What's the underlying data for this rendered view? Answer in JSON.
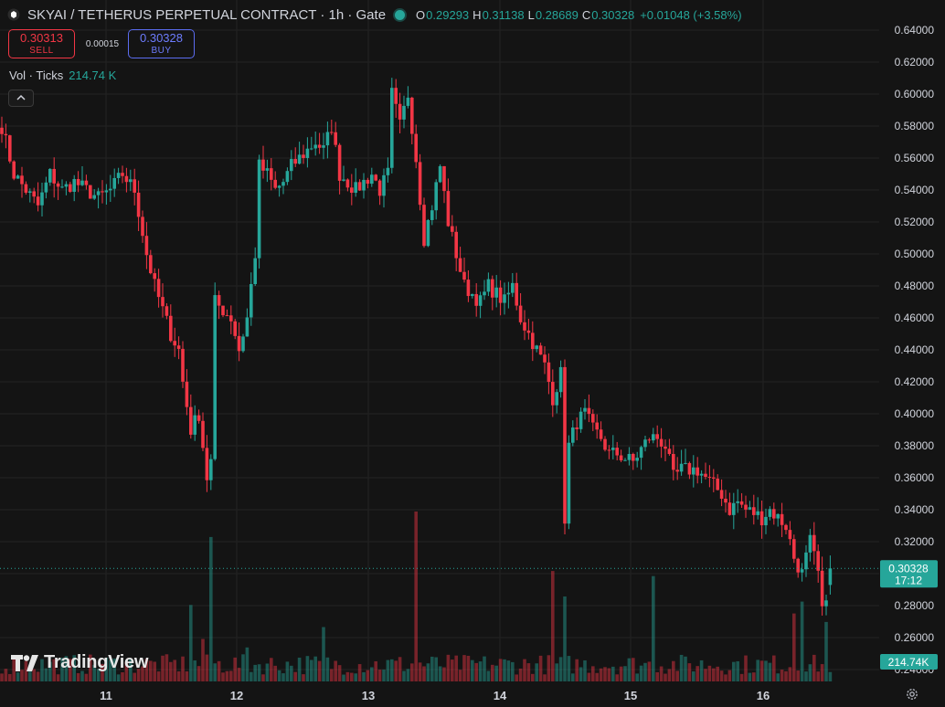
{
  "header": {
    "title": "SKYAI / TETHERUS PERPETUAL CONTRACT · 1h · Gate",
    "o_key": "O",
    "o_val": "0.29293",
    "h_key": "H",
    "h_val": "0.31138",
    "l_key": "L",
    "l_val": "0.28689",
    "c_key": "C",
    "c_val": "0.30328",
    "change": "+0.01048 (+3.58%)",
    "status_icon": "market-open-dot-icon"
  },
  "trade": {
    "sell_price": "0.30313",
    "sell_label": "SELL",
    "spread": "0.00015",
    "buy_price": "0.30328",
    "buy_label": "BUY"
  },
  "volume_legend": {
    "label": "Vol · Ticks",
    "value": "214.74 K"
  },
  "branding": {
    "logo": "TradingView"
  },
  "colors": {
    "up": "#26a69a",
    "down": "#f23645",
    "background": "#141414",
    "grid": "#232323",
    "axis_text": "#d1d4dc"
  },
  "chart_data": {
    "type": "candlestick",
    "symbol": "SKYAI / TETHERUS PERPETUAL CONTRACT",
    "interval": "1h",
    "exchange": "Gate",
    "y_axis": {
      "side": "right",
      "range": [
        0.23,
        0.64
      ],
      "ticks": [
        "0.24000",
        "0.26000",
        "0.28000",
        "0.30000",
        "0.32000",
        "0.34000",
        "0.36000",
        "0.38000",
        "0.40000",
        "0.42000",
        "0.44000",
        "0.46000",
        "0.48000",
        "0.50000",
        "0.52000",
        "0.54000",
        "0.56000",
        "0.58000",
        "0.60000",
        "0.62000",
        "0.64000"
      ]
    },
    "x_axis": {
      "labels": [
        "11",
        "12",
        "13",
        "14",
        "15",
        "16"
      ]
    },
    "grid": true,
    "last_price": {
      "value": "0.30328",
      "countdown": "17:12"
    },
    "last_volume": "214.74K",
    "close_path": [
      [
        0,
        0.58
      ],
      [
        3,
        0.55
      ],
      [
        6,
        0.54
      ],
      [
        9,
        0.53
      ],
      [
        12,
        0.55
      ],
      [
        15,
        0.54
      ],
      [
        18,
        0.545
      ],
      [
        21,
        0.54
      ],
      [
        24,
        0.535
      ],
      [
        27,
        0.54
      ],
      [
        30,
        0.55
      ],
      [
        33,
        0.54
      ],
      [
        36,
        0.5
      ],
      [
        38,
        0.48
      ],
      [
        40,
        0.465
      ],
      [
        42,
        0.45
      ],
      [
        44,
        0.44
      ],
      [
        45,
        0.42
      ],
      [
        47,
        0.39
      ],
      [
        49,
        0.4
      ],
      [
        51,
        0.36
      ],
      [
        52,
        0.37
      ],
      [
        53,
        0.47
      ],
      [
        55,
        0.465
      ],
      [
        57,
        0.46
      ],
      [
        59,
        0.44
      ],
      [
        61,
        0.46
      ],
      [
        63,
        0.5
      ],
      [
        64,
        0.555
      ],
      [
        66,
        0.55
      ],
      [
        68,
        0.54
      ],
      [
        70,
        0.545
      ],
      [
        72,
        0.555
      ],
      [
        74,
        0.56
      ],
      [
        76,
        0.565
      ],
      [
        78,
        0.57
      ],
      [
        80,
        0.565
      ],
      [
        82,
        0.58
      ],
      [
        84,
        0.55
      ],
      [
        86,
        0.545
      ],
      [
        88,
        0.54
      ],
      [
        90,
        0.545
      ],
      [
        92,
        0.55
      ],
      [
        94,
        0.54
      ],
      [
        96,
        0.55
      ],
      [
        97,
        0.6
      ],
      [
        99,
        0.58
      ],
      [
        101,
        0.6
      ],
      [
        103,
        0.56
      ],
      [
        105,
        0.51
      ],
      [
        107,
        0.53
      ],
      [
        109,
        0.555
      ],
      [
        111,
        0.52
      ],
      [
        113,
        0.5
      ],
      [
        115,
        0.48
      ],
      [
        117,
        0.475
      ],
      [
        119,
        0.47
      ],
      [
        121,
        0.48
      ],
      [
        123,
        0.475
      ],
      [
        125,
        0.47
      ],
      [
        127,
        0.48
      ],
      [
        129,
        0.46
      ],
      [
        131,
        0.45
      ],
      [
        133,
        0.44
      ],
      [
        135,
        0.43
      ],
      [
        137,
        0.41
      ],
      [
        139,
        0.425
      ],
      [
        140,
        0.335
      ],
      [
        141,
        0.38
      ],
      [
        143,
        0.395
      ],
      [
        145,
        0.4
      ],
      [
        147,
        0.39
      ],
      [
        149,
        0.385
      ],
      [
        151,
        0.375
      ],
      [
        153,
        0.375
      ],
      [
        155,
        0.372
      ],
      [
        157,
        0.37
      ],
      [
        159,
        0.378
      ],
      [
        161,
        0.385
      ],
      [
        163,
        0.385
      ],
      [
        165,
        0.38
      ],
      [
        167,
        0.36
      ],
      [
        169,
        0.365
      ],
      [
        171,
        0.365
      ],
      [
        173,
        0.365
      ],
      [
        175,
        0.36
      ],
      [
        177,
        0.355
      ],
      [
        179,
        0.35
      ],
      [
        181,
        0.34
      ],
      [
        183,
        0.345
      ],
      [
        185,
        0.34
      ],
      [
        187,
        0.338
      ],
      [
        189,
        0.335
      ],
      [
        191,
        0.34
      ],
      [
        193,
        0.335
      ],
      [
        195,
        0.33
      ],
      [
        197,
        0.31
      ],
      [
        199,
        0.3
      ],
      [
        201,
        0.32
      ],
      [
        203,
        0.3
      ],
      [
        204,
        0.275
      ],
      [
        205,
        0.288
      ],
      [
        206,
        0.30328
      ]
    ],
    "volume_spikes": [
      {
        "index": 47,
        "direction": "up",
        "relative": 0.45
      },
      {
        "index": 50,
        "direction": "down",
        "relative": 0.25
      },
      {
        "index": 52,
        "direction": "up",
        "relative": 0.85
      },
      {
        "index": 61,
        "direction": "up",
        "relative": 0.2
      },
      {
        "index": 80,
        "direction": "up",
        "relative": 0.32
      },
      {
        "index": 103,
        "direction": "down",
        "relative": 1.0
      },
      {
        "index": 137,
        "direction": "down",
        "relative": 0.65
      },
      {
        "index": 140,
        "direction": "up",
        "relative": 0.5
      },
      {
        "index": 162,
        "direction": "up",
        "relative": 0.62
      },
      {
        "index": 197,
        "direction": "down",
        "relative": 0.4
      },
      {
        "index": 199,
        "direction": "up",
        "relative": 0.47
      },
      {
        "index": 205,
        "direction": "up",
        "relative": 0.35
      }
    ]
  }
}
